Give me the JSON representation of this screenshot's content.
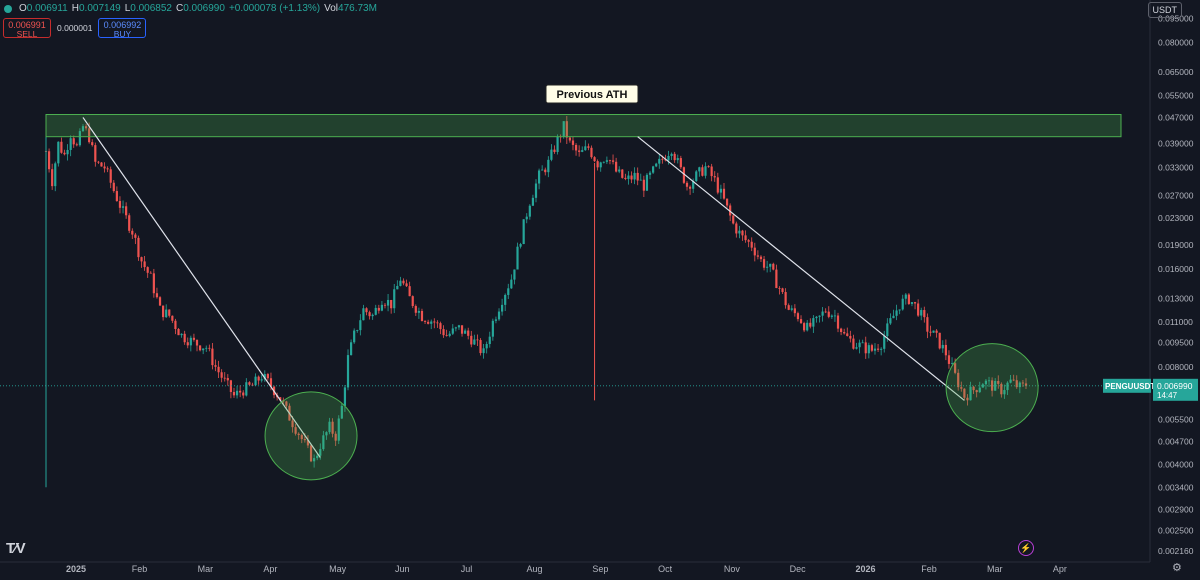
{
  "header": {
    "ohlc": [
      {
        "label": "O",
        "value": "0.006911"
      },
      {
        "label": "H",
        "value": "0.007149"
      },
      {
        "label": "L",
        "value": "0.006852"
      },
      {
        "label": "C",
        "value": "0.006990"
      },
      {
        "label": "",
        "value": "+0.000078 (+1.13%)"
      },
      {
        "label": "Vol",
        "value": "476.73M"
      }
    ],
    "sell": {
      "price": "0.006991",
      "label": "SELL"
    },
    "buy": {
      "price": "0.006992",
      "label": "BUY"
    },
    "spread": "0.000001",
    "currency": "USDT"
  },
  "chart_data": {
    "type": "candlestick",
    "symbol": "PENGUUSDT",
    "last_price": "0.006990",
    "countdown": "14:47",
    "y_scale": "log",
    "ylim": [
      0.002,
      0.098
    ],
    "y_ticks": [
      "0.095000",
      "0.080000",
      "0.065000",
      "0.055000",
      "0.047000",
      "0.039000",
      "0.033000",
      "0.027000",
      "0.023000",
      "0.019000",
      "0.016000",
      "0.013000",
      "0.011000",
      "0.009500",
      "0.008000",
      "0.006990",
      "0.005500",
      "0.004700",
      "0.004000",
      "0.003400",
      "0.002900",
      "0.002500",
      "0.002160"
    ],
    "x_ticks": [
      "2025",
      "Feb",
      "Mar",
      "Apr",
      "May",
      "Jun",
      "Jul",
      "Aug",
      "Sep",
      "Oct",
      "Nov",
      "Dec",
      "2026",
      "Feb",
      "Mar",
      "Apr"
    ],
    "price_path": [
      {
        "t": 0,
        "p": 0.037
      },
      {
        "t": 2,
        "p": 0.03
      },
      {
        "t": 4,
        "p": 0.039
      },
      {
        "t": 6,
        "p": 0.036
      },
      {
        "t": 8,
        "p": 0.042
      },
      {
        "t": 10,
        "p": 0.038
      },
      {
        "t": 12,
        "p": 0.044
      },
      {
        "t": 14,
        "p": 0.041
      },
      {
        "t": 16,
        "p": 0.034
      },
      {
        "t": 19,
        "p": 0.033
      },
      {
        "t": 22,
        "p": 0.028
      },
      {
        "t": 25,
        "p": 0.024
      },
      {
        "t": 28,
        "p": 0.021
      },
      {
        "t": 31,
        "p": 0.017
      },
      {
        "t": 34,
        "p": 0.015
      },
      {
        "t": 37,
        "p": 0.012
      },
      {
        "t": 40,
        "p": 0.0115
      },
      {
        "t": 44,
        "p": 0.01
      },
      {
        "t": 48,
        "p": 0.0095
      },
      {
        "t": 52,
        "p": 0.0092
      },
      {
        "t": 55,
        "p": 0.008
      },
      {
        "t": 58,
        "p": 0.0072
      },
      {
        "t": 61,
        "p": 0.0065
      },
      {
        "t": 64,
        "p": 0.0068
      },
      {
        "t": 67,
        "p": 0.007
      },
      {
        "t": 70,
        "p": 0.0075
      },
      {
        "t": 73,
        "p": 0.007
      },
      {
        "t": 76,
        "p": 0.0064
      },
      {
        "t": 79,
        "p": 0.0056
      },
      {
        "t": 82,
        "p": 0.005
      },
      {
        "t": 85,
        "p": 0.0044
      },
      {
        "t": 87,
        "p": 0.0041
      },
      {
        "t": 89,
        "p": 0.0046
      },
      {
        "t": 92,
        "p": 0.0052
      },
      {
        "t": 94,
        "p": 0.0049
      },
      {
        "t": 96,
        "p": 0.006
      },
      {
        "t": 98,
        "p": 0.0085
      },
      {
        "t": 100,
        "p": 0.01
      },
      {
        "t": 103,
        "p": 0.012
      },
      {
        "t": 106,
        "p": 0.0115
      },
      {
        "t": 109,
        "p": 0.013
      },
      {
        "t": 112,
        "p": 0.0125
      },
      {
        "t": 115,
        "p": 0.015
      },
      {
        "t": 118,
        "p": 0.013
      },
      {
        "t": 122,
        "p": 0.0115
      },
      {
        "t": 126,
        "p": 0.011
      },
      {
        "t": 130,
        "p": 0.01
      },
      {
        "t": 134,
        "p": 0.0105
      },
      {
        "t": 138,
        "p": 0.0098
      },
      {
        "t": 142,
        "p": 0.0088
      },
      {
        "t": 145,
        "p": 0.011
      },
      {
        "t": 148,
        "p": 0.013
      },
      {
        "t": 151,
        "p": 0.015
      },
      {
        "t": 154,
        "p": 0.02
      },
      {
        "t": 157,
        "p": 0.026
      },
      {
        "t": 160,
        "p": 0.031
      },
      {
        "t": 163,
        "p": 0.034
      },
      {
        "t": 166,
        "p": 0.04
      },
      {
        "t": 168,
        "p": 0.044
      },
      {
        "t": 170,
        "p": 0.039
      },
      {
        "t": 173,
        "p": 0.036
      },
      {
        "t": 176,
        "p": 0.038
      },
      {
        "t": 179,
        "p": 0.034
      },
      {
        "t": 182,
        "p": 0.036
      },
      {
        "t": 185,
        "p": 0.032
      },
      {
        "t": 188,
        "p": 0.03
      },
      {
        "t": 191,
        "p": 0.031
      },
      {
        "t": 194,
        "p": 0.029
      },
      {
        "t": 197,
        "p": 0.032
      },
      {
        "t": 200,
        "p": 0.035
      },
      {
        "t": 203,
        "p": 0.038
      },
      {
        "t": 205,
        "p": 0.034
      },
      {
        "t": 208,
        "p": 0.029
      },
      {
        "t": 211,
        "p": 0.031
      },
      {
        "t": 214,
        "p": 0.033
      },
      {
        "t": 217,
        "p": 0.03
      },
      {
        "t": 220,
        "p": 0.026
      },
      {
        "t": 223,
        "p": 0.022
      },
      {
        "t": 226,
        "p": 0.02
      },
      {
        "t": 229,
        "p": 0.019
      },
      {
        "t": 232,
        "p": 0.017
      },
      {
        "t": 235,
        "p": 0.016
      },
      {
        "t": 238,
        "p": 0.014
      },
      {
        "t": 241,
        "p": 0.012
      },
      {
        "t": 244,
        "p": 0.0115
      },
      {
        "t": 247,
        "p": 0.0105
      },
      {
        "t": 250,
        "p": 0.011
      },
      {
        "t": 253,
        "p": 0.012
      },
      {
        "t": 256,
        "p": 0.0115
      },
      {
        "t": 259,
        "p": 0.01
      },
      {
        "t": 262,
        "p": 0.0095
      },
      {
        "t": 265,
        "p": 0.0092
      },
      {
        "t": 268,
        "p": 0.009
      },
      {
        "t": 271,
        "p": 0.0095
      },
      {
        "t": 274,
        "p": 0.011
      },
      {
        "t": 277,
        "p": 0.0125
      },
      {
        "t": 280,
        "p": 0.013
      },
      {
        "t": 283,
        "p": 0.012
      },
      {
        "t": 286,
        "p": 0.0105
      },
      {
        "t": 289,
        "p": 0.0098
      },
      {
        "t": 292,
        "p": 0.0088
      },
      {
        "t": 295,
        "p": 0.0075
      },
      {
        "t": 298,
        "p": 0.0065
      },
      {
        "t": 301,
        "p": 0.0068
      },
      {
        "t": 304,
        "p": 0.0072
      },
      {
        "t": 307,
        "p": 0.007
      },
      {
        "t": 310,
        "p": 0.0068
      },
      {
        "t": 313,
        "p": 0.0072
      },
      {
        "t": 316,
        "p": 0.0069
      },
      {
        "t": 318,
        "p": 0.00699
      }
    ],
    "wicks": [
      {
        "t": 0,
        "low": 0.0034,
        "high": 0.046
      },
      {
        "t": 178,
        "low": 0.0063,
        "high": 0.034
      }
    ],
    "annotations": [
      {
        "type": "zone",
        "label": "Previous ATH",
        "y0": 0.041,
        "y1": 0.048,
        "t0": 0,
        "t1": 318
      },
      {
        "type": "trendline",
        "t0": 12,
        "p0": 0.047,
        "t1": 89,
        "p1": 0.0042
      },
      {
        "type": "trendline",
        "t0": 192,
        "p0": 0.041,
        "t1": 298,
        "p1": 0.0063
      },
      {
        "type": "circle",
        "t": 86,
        "p": 0.0049
      },
      {
        "type": "circle",
        "t": 307,
        "p": 0.0069
      }
    ]
  }
}
